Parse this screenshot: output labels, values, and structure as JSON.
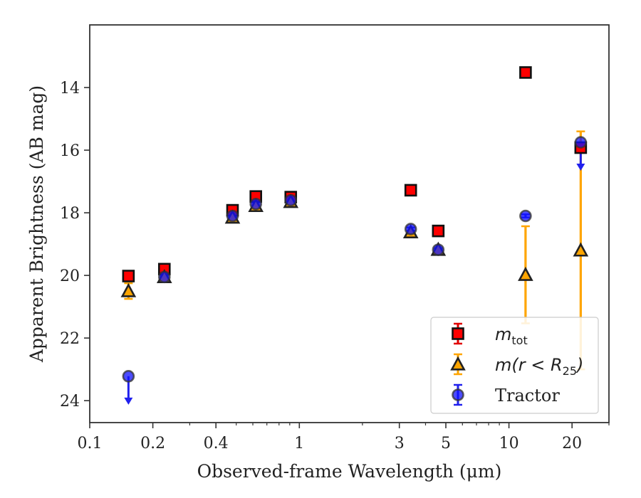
{
  "chart_data": {
    "type": "scatter",
    "xlabel": "Observed-frame Wavelength (μm)",
    "ylabel": "Apparent Brightness (AB mag)",
    "xscale": "log",
    "xlim": [
      0.1,
      30
    ],
    "ylim": [
      24.7,
      12.0
    ],
    "y_inverted": true,
    "x_ticks": [
      0.1,
      0.2,
      0.4,
      1,
      3,
      5,
      10,
      20
    ],
    "x_tick_labels": [
      "0.1",
      "0.2",
      "0.4",
      "1",
      "3",
      "5",
      "10",
      "20"
    ],
    "y_ticks": [
      14,
      16,
      18,
      20,
      22,
      24
    ],
    "y_tick_labels": [
      "14",
      "16",
      "18",
      "20",
      "22",
      "24"
    ],
    "grid": false,
    "legend_placement": "lower-right",
    "series": [
      {
        "name": "m_tot",
        "label_main": "m",
        "label_sub": "tot",
        "marker": "square",
        "color": "#ff0000",
        "edge": "#111111",
        "ecolor": "#e00000",
        "points": [
          {
            "x": 0.153,
            "y": 20.02,
            "err": 0.08
          },
          {
            "x": 0.227,
            "y": 19.8,
            "err": 0.08
          },
          {
            "x": 0.48,
            "y": 17.92,
            "err": 0.05
          },
          {
            "x": 0.62,
            "y": 17.48,
            "err": 0.05
          },
          {
            "x": 0.91,
            "y": 17.5,
            "err": 0.05
          },
          {
            "x": 3.4,
            "y": 17.28,
            "err": 0.05
          },
          {
            "x": 4.6,
            "y": 18.58,
            "err": 0.05
          },
          {
            "x": 12.0,
            "y": 13.52,
            "err": 0.05
          },
          {
            "x": 22.0,
            "y": 15.92,
            "err": 0.1
          }
        ]
      },
      {
        "name": "m(r < R_25)",
        "label_main": "m(r < R",
        "label_sub": "25",
        "label_tail": ")",
        "marker": "triangle",
        "color": "#ffa500",
        "edge": "#222222",
        "ecolor": "#ffa500",
        "points": [
          {
            "x": 0.153,
            "y": 20.5,
            "err": 0.25
          },
          {
            "x": 0.227,
            "y": 20.05,
            "err": 0.08
          },
          {
            "x": 0.48,
            "y": 18.15,
            "err": 0.05
          },
          {
            "x": 0.62,
            "y": 17.78,
            "err": 0.05
          },
          {
            "x": 0.91,
            "y": 17.65,
            "err": 0.05
          },
          {
            "x": 3.4,
            "y": 18.62,
            "err": 0.05
          },
          {
            "x": 4.6,
            "y": 19.18,
            "err": 0.05
          },
          {
            "x": 12.0,
            "y": 19.98,
            "err": 1.55
          },
          {
            "x": 22.0,
            "y": 19.2,
            "err": 3.8
          }
        ]
      },
      {
        "name": "Tractor",
        "marker": "circle",
        "color": "#1010ff",
        "edge": "#333333",
        "ecolor": "#2020ee",
        "points": [
          {
            "x": 0.153,
            "y": 23.22,
            "upper_limit": true
          },
          {
            "x": 0.227,
            "y": 20.05,
            "err": 0.05
          },
          {
            "x": 0.48,
            "y": 18.1,
            "err": 0.05
          },
          {
            "x": 0.62,
            "y": 17.72,
            "err": 0.05
          },
          {
            "x": 0.91,
            "y": 17.6,
            "err": 0.05
          },
          {
            "x": 3.4,
            "y": 18.52,
            "err": 0.05
          },
          {
            "x": 4.6,
            "y": 19.18,
            "err": 0.05
          },
          {
            "x": 12.0,
            "y": 18.1,
            "err": 0.05
          },
          {
            "x": 22.0,
            "y": 15.75,
            "upper_limit": true
          }
        ]
      }
    ]
  }
}
